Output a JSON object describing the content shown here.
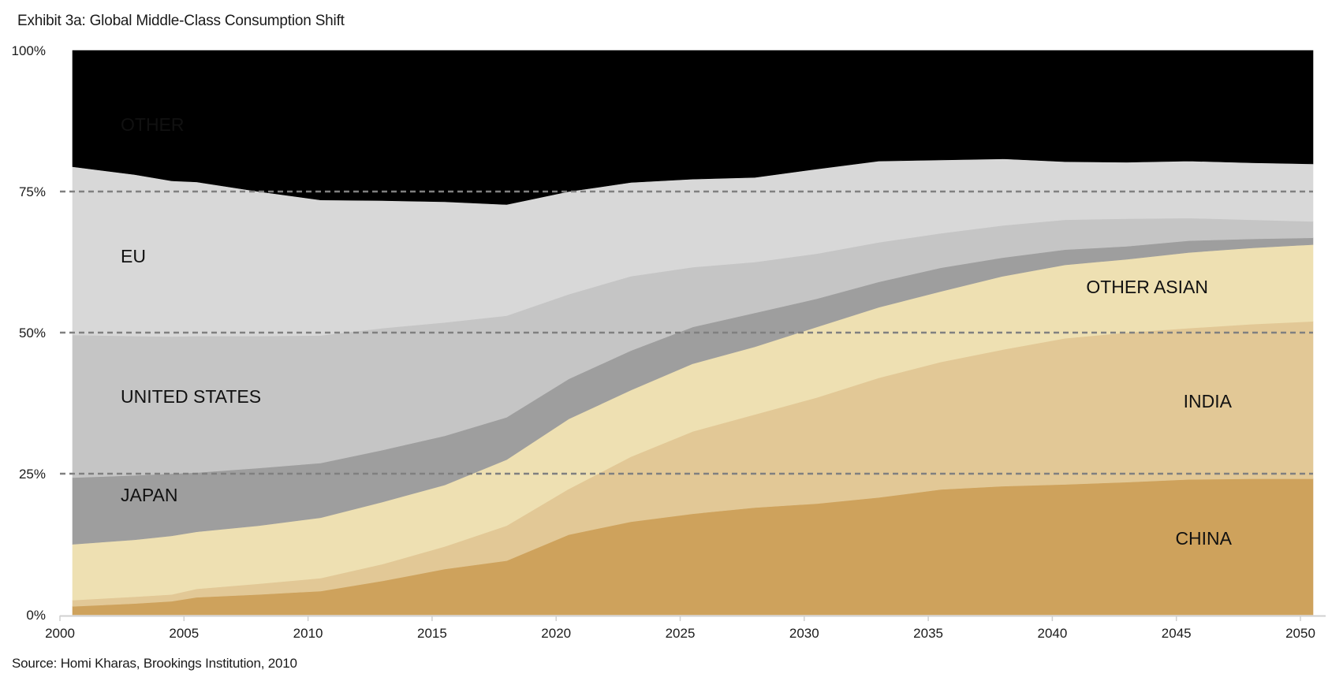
{
  "chart_data": {
    "type": "area",
    "stacked": true,
    "normalized": true,
    "title": "Exhibit 3a: Global Middle-Class Consumption Shift",
    "source": "Source: Homi Kharas, Brookings Institution, 2010",
    "xlabel": "",
    "ylabel": "",
    "xlim": [
      2000,
      2050
    ],
    "ylim": [
      0,
      100
    ],
    "x_ticks": [
      "2000",
      "2005",
      "2010",
      "2015",
      "2020",
      "2025",
      "2030",
      "2035",
      "2040",
      "2045",
      "2050"
    ],
    "y_ticks": [
      {
        "value": 0,
        "label": "0%"
      },
      {
        "value": 25,
        "label": "25%"
      },
      {
        "value": 50,
        "label": "50%"
      },
      {
        "value": 75,
        "label": "75%"
      },
      {
        "value": 100,
        "label": "100%"
      }
    ],
    "gridlines": {
      "values": [
        25,
        50,
        75
      ],
      "style": "dashed"
    },
    "legend": "inline-labels",
    "x": [
      2000,
      2002.5,
      2004,
      2005,
      2007.5,
      2010,
      2012.5,
      2015,
      2017.5,
      2020,
      2022.5,
      2025,
      2027.5,
      2030,
      2032.5,
      2035,
      2037.5,
      2040,
      2042.5,
      2045,
      2047.5,
      2050
    ],
    "series": [
      {
        "name": "CHINA",
        "color": "#cea25c",
        "label_color": "#111111",
        "values": [
          1.5,
          2.0,
          2.4,
          3.1,
          3.6,
          4.2,
          6.0,
          8.1,
          9.6,
          14.2,
          16.5,
          17.9,
          19.0,
          19.7,
          20.8,
          22.2,
          22.8,
          23.1,
          23.5,
          24.0,
          24.1,
          24.1
        ]
      },
      {
        "name": "INDIA",
        "color": "#e2c896",
        "label_color": "#111111",
        "values": [
          1.1,
          1.2,
          1.2,
          1.5,
          1.9,
          2.3,
          3.0,
          4.0,
          6.2,
          8.1,
          11.5,
          14.6,
          16.5,
          18.8,
          21.2,
          22.6,
          24.2,
          25.9,
          26.5,
          26.8,
          27.4,
          27.9
        ]
      },
      {
        "name": "OTHER ASIAN",
        "color": "#eee0b2",
        "label_color": "#111111",
        "values": [
          9.9,
          10.1,
          10.4,
          10.1,
          10.3,
          10.7,
          11.0,
          10.9,
          11.7,
          12.4,
          11.8,
          12.0,
          12.0,
          12.5,
          12.5,
          12.5,
          13.0,
          13.0,
          13.0,
          13.4,
          13.5,
          13.6
        ]
      },
      {
        "name": "JAPAN",
        "color": "#9e9e9e",
        "label_color": "#111111",
        "values": [
          11.8,
          11.4,
          11.0,
          10.5,
          10.2,
          9.7,
          9.2,
          8.7,
          7.5,
          7.1,
          7.0,
          6.5,
          6.0,
          5.0,
          4.5,
          4.2,
          3.3,
          2.7,
          2.3,
          2.1,
          1.6,
          1.2
        ]
      },
      {
        "name": "UNITED STATES",
        "color": "#c5c5c5",
        "label_color": "#111111",
        "values": [
          25.3,
          24.7,
          24.3,
          24.2,
          23.4,
          22.6,
          21.6,
          20.1,
          18.0,
          15.0,
          13.2,
          10.6,
          9.0,
          8.0,
          7.0,
          6.1,
          5.7,
          5.3,
          4.9,
          4.0,
          3.4,
          2.9
        ]
      },
      {
        "name": "EU",
        "color": "#d8d8d8",
        "label_color": "#111111",
        "values": [
          29.8,
          28.6,
          27.6,
          27.3,
          25.6,
          24.0,
          22.6,
          21.4,
          19.7,
          18.2,
          16.6,
          15.6,
          15.0,
          15.0,
          14.4,
          13.0,
          11.8,
          10.3,
          10.0,
          10.1,
          10.1,
          10.2
        ]
      },
      {
        "name": "OTHER",
        "color": "#000000",
        "label_color": "#ffffff",
        "values": [
          20.6,
          22.0,
          23.1,
          23.3,
          25.0,
          26.5,
          26.6,
          26.8,
          27.3,
          25.0,
          23.4,
          22.8,
          22.5,
          21.0,
          19.6,
          19.4,
          19.2,
          19.7,
          19.8,
          19.6,
          19.9,
          20.1
        ]
      }
    ],
    "colors": {
      "gridline": "#808080",
      "axis": "#d0d0d0",
      "text": "#1a1a1a"
    }
  }
}
